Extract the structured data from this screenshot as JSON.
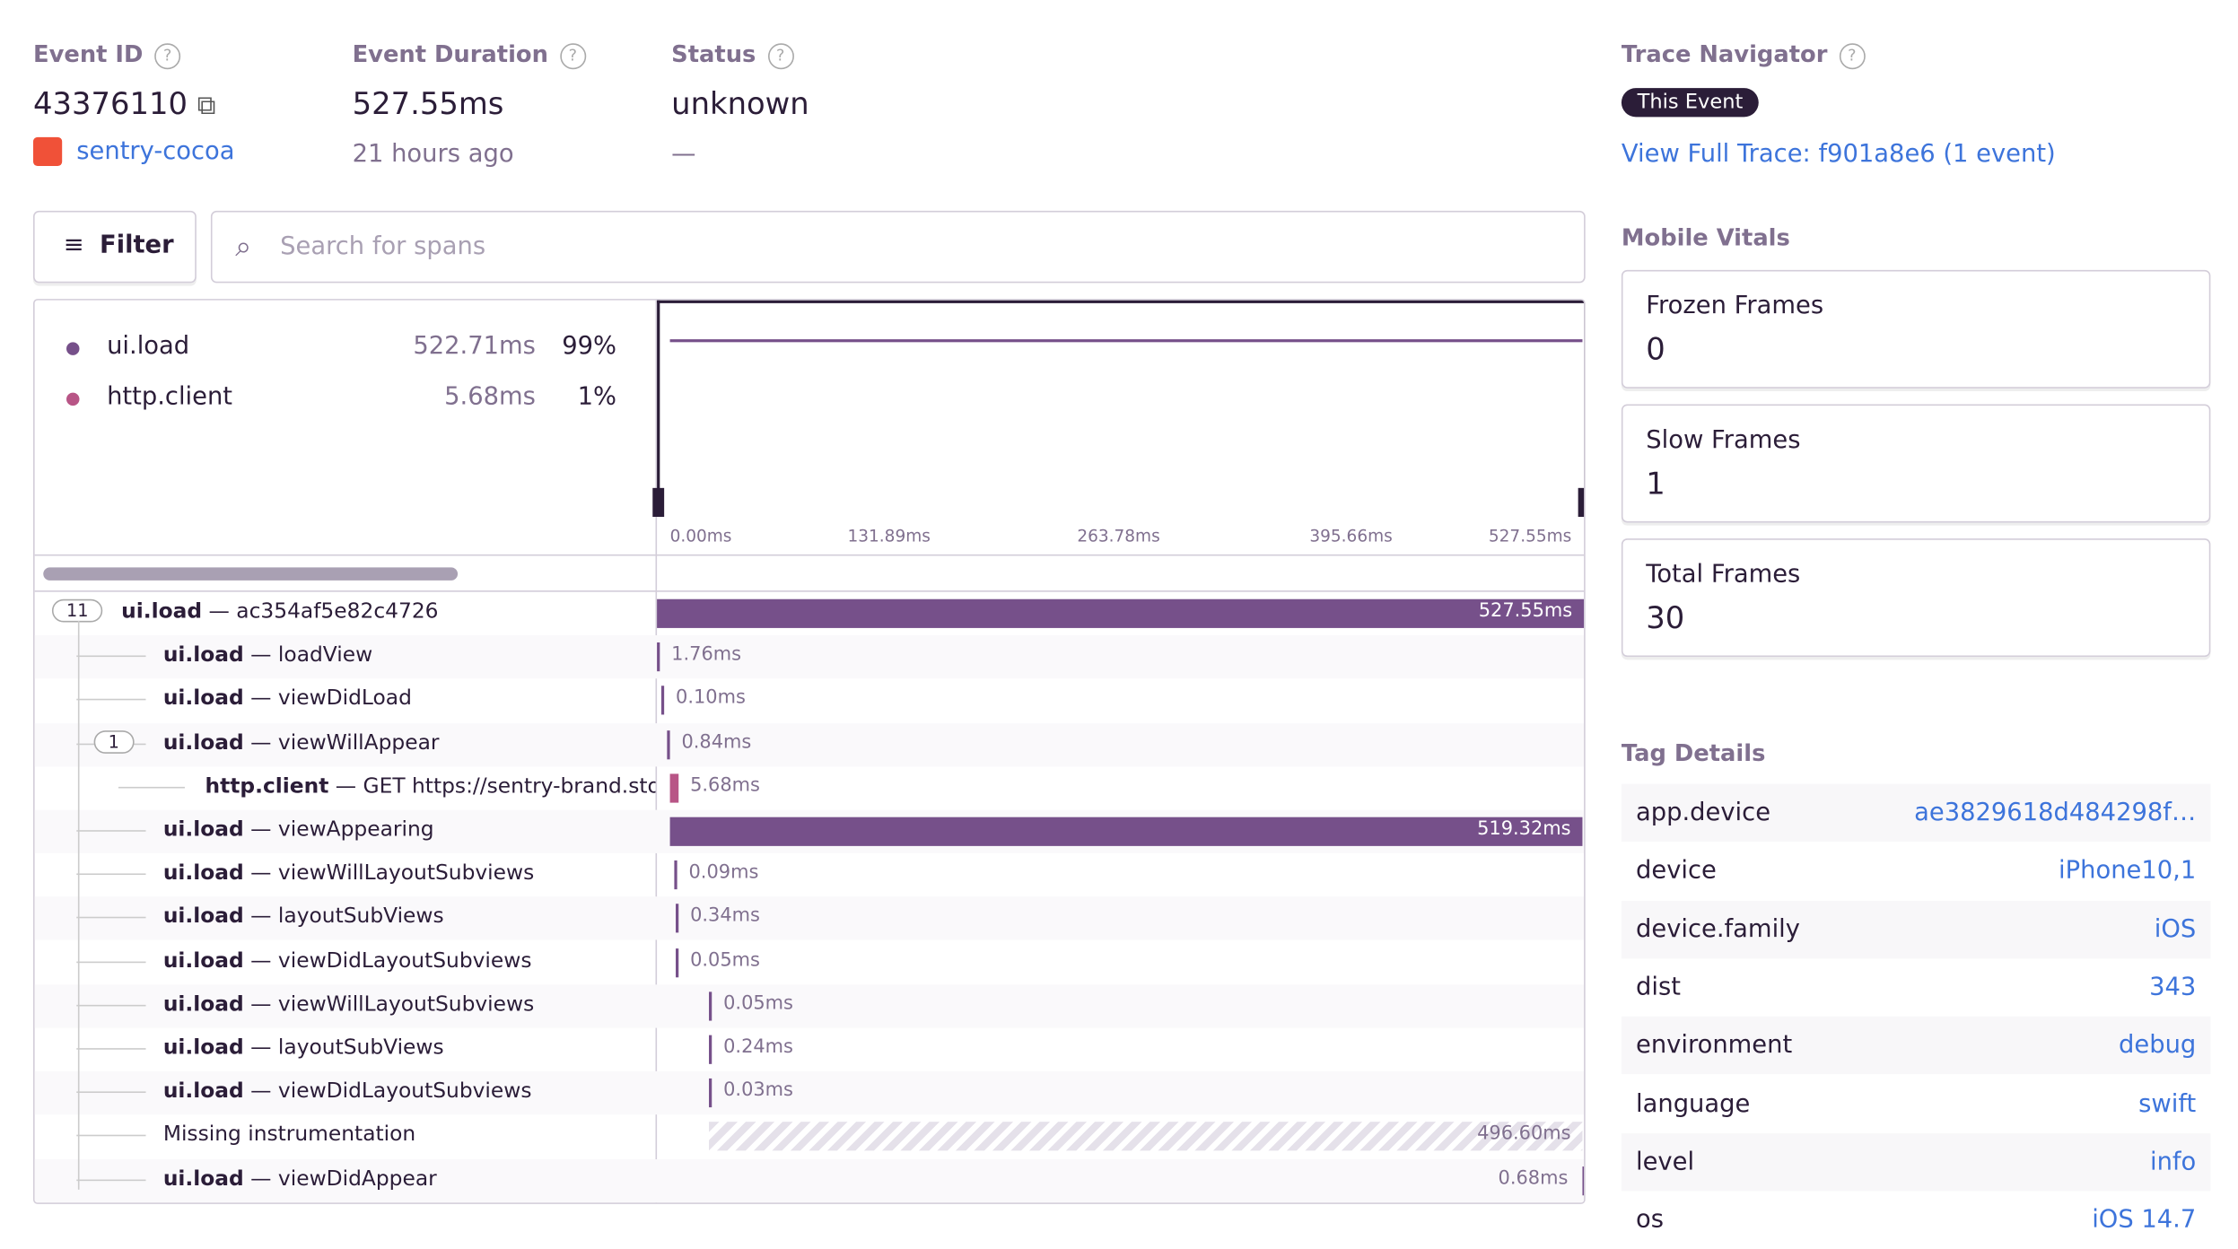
{
  "header": {
    "event_id": {
      "label": "Event ID",
      "value": "43376110",
      "project": "sentry-cocoa"
    },
    "duration": {
      "label": "Event Duration",
      "value": "527.55ms",
      "sub": "21 hours ago"
    },
    "status": {
      "label": "Status",
      "value": "unknown",
      "sub": "—"
    },
    "trace": {
      "label": "Trace Navigator",
      "badge": "This Event",
      "link": "View Full Trace: f901a8e6 (1 event)"
    }
  },
  "toolbar": {
    "filter": "Filter",
    "search_placeholder": "Search for spans"
  },
  "ops": [
    {
      "name": "ui.load",
      "duration": "522.71ms",
      "percent": "99%"
    },
    {
      "name": "http.client",
      "duration": "5.68ms",
      "percent": "1%"
    }
  ],
  "minimap_ticks": [
    "0.00ms",
    "131.89ms",
    "263.78ms",
    "395.66ms",
    "527.55ms"
  ],
  "spans": [
    {
      "count": "11",
      "op": "ui.load",
      "desc": "— ac354af5e82c4726",
      "duration": "527.55ms"
    },
    {
      "op": "ui.load",
      "desc": "— loadView",
      "duration": "1.76ms"
    },
    {
      "op": "ui.load",
      "desc": "— viewDidLoad",
      "duration": "0.10ms"
    },
    {
      "count": "1",
      "op": "ui.load",
      "desc": "— viewWillAppear",
      "duration": "0.84ms"
    },
    {
      "op": "http.client",
      "desc": "— GET https://sentry-brand.stora",
      "duration": "5.68ms"
    },
    {
      "op": "ui.load",
      "desc": "— viewAppearing",
      "duration": "519.32ms"
    },
    {
      "op": "ui.load",
      "desc": "— viewWillLayoutSubviews",
      "duration": "0.09ms"
    },
    {
      "op": "ui.load",
      "desc": "— layoutSubViews",
      "duration": "0.34ms"
    },
    {
      "op": "ui.load",
      "desc": "— viewDidLayoutSubviews",
      "duration": "0.05ms"
    },
    {
      "op": "ui.load",
      "desc": "— viewWillLayoutSubviews",
      "duration": "0.05ms"
    },
    {
      "op": "ui.load",
      "desc": "— layoutSubViews",
      "duration": "0.24ms"
    },
    {
      "op": "ui.load",
      "desc": "— viewDidLayoutSubviews",
      "duration": "0.03ms"
    },
    {
      "desc": "Missing instrumentation",
      "duration": "496.60ms"
    },
    {
      "op": "ui.load",
      "desc": "— viewDidAppear",
      "duration": "0.68ms"
    }
  ],
  "vitals": {
    "title": "Mobile Vitals",
    "items": [
      {
        "label": "Frozen Frames",
        "value": "0"
      },
      {
        "label": "Slow Frames",
        "value": "1"
      },
      {
        "label": "Total Frames",
        "value": "30"
      }
    ]
  },
  "tags": {
    "title": "Tag Details",
    "rows": [
      [
        "app.device",
        "ae3829618d484298f…"
      ],
      [
        "device",
        "iPhone10,1"
      ],
      [
        "device.family",
        "iOS"
      ],
      [
        "dist",
        "343"
      ],
      [
        "environment",
        "debug"
      ],
      [
        "language",
        "swift"
      ],
      [
        "level",
        "info"
      ],
      [
        "os",
        "iOS 14.7"
      ]
    ]
  }
}
